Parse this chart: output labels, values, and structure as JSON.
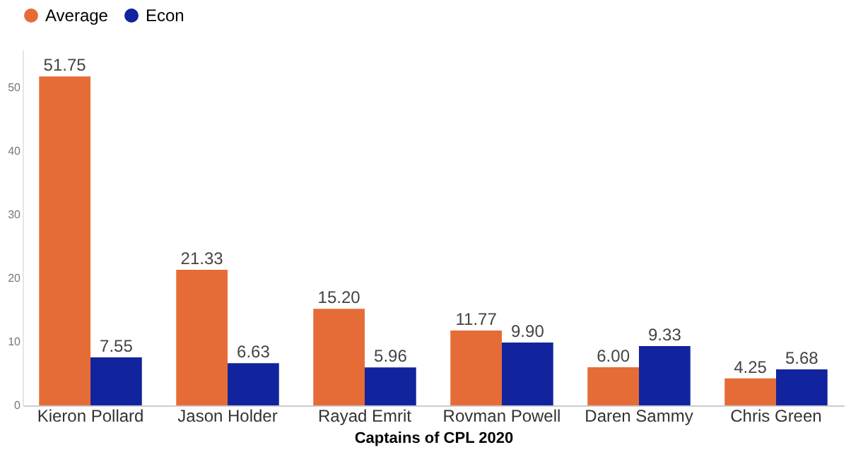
{
  "chart_data": {
    "type": "bar",
    "xlabel": "Captains of CPL 2020",
    "categories": [
      "Kieron Pollard",
      "Jason Holder",
      "Rayad Emrit",
      "Rovman Powell",
      "Daren Sammy",
      "Chris Green"
    ],
    "series": [
      {
        "name": "Average",
        "color": "#e66c37",
        "values": [
          51.75,
          21.33,
          15.2,
          11.77,
          6.0,
          4.25
        ],
        "value_labels": [
          "51.75",
          "21.33",
          "15.20",
          "11.77",
          "6.00",
          "4.25"
        ]
      },
      {
        "name": "Econ",
        "color": "#12239e",
        "values": [
          7.55,
          6.63,
          5.96,
          9.9,
          9.33,
          5.68
        ],
        "value_labels": [
          "7.55",
          "6.63",
          "5.96",
          "9.90",
          "9.33",
          "5.68"
        ]
      }
    ],
    "ylim": [
      0,
      56
    ],
    "yticks": [
      0,
      10,
      20,
      30,
      40,
      50
    ],
    "grid": false,
    "legend": "top"
  }
}
